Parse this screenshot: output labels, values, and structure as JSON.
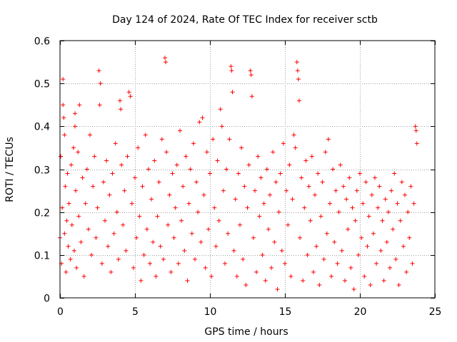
{
  "chart_data": {
    "type": "scatter",
    "title": "Day 124 of 2024, Rate Of TEC Index for receiver sctb",
    "xlabel": "GPS time / hours",
    "ylabel": "ROTI / TECUs",
    "xlim": [
      0,
      25
    ],
    "ylim": [
      0,
      0.6
    ],
    "x_ticks": [
      "0",
      "5",
      "10",
      "15",
      "20",
      "25"
    ],
    "y_ticks": [
      "0",
      "0.1",
      "0.2",
      "0.3",
      "0.4",
      "0.5",
      "0.6"
    ],
    "x_tick_values": [
      0,
      5,
      10,
      15,
      20,
      25
    ],
    "y_tick_values": [
      0,
      0.1,
      0.2,
      0.3,
      0.4,
      0.5,
      0.6
    ],
    "grid": true,
    "marker": "+",
    "color": "#ff0000",
    "series": [
      {
        "points": [
          [
            0.0,
            0.14
          ],
          [
            0.05,
            0.33
          ],
          [
            0.1,
            0.08
          ],
          [
            0.15,
            0.21
          ],
          [
            0.2,
            0.51
          ],
          [
            0.2,
            0.45
          ],
          [
            0.25,
            0.42
          ],
          [
            0.3,
            0.38
          ],
          [
            0.3,
            0.15
          ],
          [
            0.35,
            0.26
          ],
          [
            0.4,
            0.06
          ],
          [
            0.45,
            0.18
          ],
          [
            0.5,
            0.29
          ],
          [
            0.55,
            0.12
          ],
          [
            0.6,
            0.22
          ],
          [
            0.7,
            0.09
          ],
          [
            0.75,
            0.31
          ],
          [
            0.8,
            0.17
          ],
          [
            0.9,
            0.35
          ],
          [
            0.95,
            0.11
          ],
          [
            1.0,
            0.4
          ],
          [
            1.0,
            0.43
          ],
          [
            1.05,
            0.25
          ],
          [
            1.1,
            0.07
          ],
          [
            1.2,
            0.34
          ],
          [
            1.25,
            0.19
          ],
          [
            1.3,
            0.45
          ],
          [
            1.4,
            0.13
          ],
          [
            1.5,
            0.28
          ],
          [
            1.6,
            0.05
          ],
          [
            1.7,
            0.22
          ],
          [
            1.8,
            0.3
          ],
          [
            1.9,
            0.16
          ],
          [
            2.0,
            0.38
          ],
          [
            2.1,
            0.1
          ],
          [
            2.2,
            0.26
          ],
          [
            2.3,
            0.33
          ],
          [
            2.4,
            0.14
          ],
          [
            2.5,
            0.21
          ],
          [
            2.6,
            0.53
          ],
          [
            2.65,
            0.45
          ],
          [
            2.7,
            0.5
          ],
          [
            2.8,
            0.08
          ],
          [
            2.9,
            0.27
          ],
          [
            3.0,
            0.18
          ],
          [
            3.1,
            0.32
          ],
          [
            3.2,
            0.12
          ],
          [
            3.3,
            0.24
          ],
          [
            3.4,
            0.06
          ],
          [
            3.5,
            0.29
          ],
          [
            3.6,
            0.15
          ],
          [
            3.7,
            0.36
          ],
          [
            3.8,
            0.2
          ],
          [
            3.9,
            0.09
          ],
          [
            4.0,
            0.46
          ],
          [
            4.05,
            0.44
          ],
          [
            4.1,
            0.31
          ],
          [
            4.2,
            0.17
          ],
          [
            4.3,
            0.25
          ],
          [
            4.4,
            0.11
          ],
          [
            4.5,
            0.33
          ],
          [
            4.6,
            0.48
          ],
          [
            4.7,
            0.47
          ],
          [
            4.8,
            0.22
          ],
          [
            4.9,
            0.07
          ],
          [
            5.0,
            0.28
          ],
          [
            5.1,
            0.14
          ],
          [
            5.2,
            0.35
          ],
          [
            5.3,
            0.19
          ],
          [
            5.4,
            0.04
          ],
          [
            5.5,
            0.26
          ],
          [
            5.6,
            0.1
          ],
          [
            5.7,
            0.38
          ],
          [
            5.8,
            0.16
          ],
          [
            5.9,
            0.3
          ],
          [
            6.0,
            0.08
          ],
          [
            6.1,
            0.23
          ],
          [
            6.2,
            0.13
          ],
          [
            6.3,
            0.32
          ],
          [
            6.4,
            0.05
          ],
          [
            6.5,
            0.19
          ],
          [
            6.6,
            0.27
          ],
          [
            6.7,
            0.12
          ],
          [
            6.8,
            0.37
          ],
          [
            6.9,
            0.09
          ],
          [
            7.0,
            0.56
          ],
          [
            7.05,
            0.55
          ],
          [
            7.1,
            0.34
          ],
          [
            7.2,
            0.17
          ],
          [
            7.3,
            0.24
          ],
          [
            7.4,
            0.06
          ],
          [
            7.5,
            0.29
          ],
          [
            7.6,
            0.14
          ],
          [
            7.7,
            0.21
          ],
          [
            7.8,
            0.31
          ],
          [
            7.9,
            0.08
          ],
          [
            8.0,
            0.39
          ],
          [
            8.1,
            0.18
          ],
          [
            8.2,
            0.26
          ],
          [
            8.3,
            0.11
          ],
          [
            8.4,
            0.33
          ],
          [
            8.5,
            0.04
          ],
          [
            8.6,
            0.22
          ],
          [
            8.7,
            0.3
          ],
          [
            8.8,
            0.15
          ],
          [
            8.9,
            0.36
          ],
          [
            9.0,
            0.09
          ],
          [
            9.1,
            0.27
          ],
          [
            9.2,
            0.2
          ],
          [
            9.3,
            0.41
          ],
          [
            9.4,
            0.13
          ],
          [
            9.5,
            0.42
          ],
          [
            9.6,
            0.24
          ],
          [
            9.7,
            0.07
          ],
          [
            9.8,
            0.34
          ],
          [
            9.9,
            0.16
          ],
          [
            10.0,
            0.29
          ],
          [
            10.1,
            0.05
          ],
          [
            10.2,
            0.37
          ],
          [
            10.3,
            0.21
          ],
          [
            10.4,
            0.12
          ],
          [
            10.5,
            0.32
          ],
          [
            10.6,
            0.18
          ],
          [
            10.7,
            0.44
          ],
          [
            10.8,
            0.4
          ],
          [
            10.9,
            0.25
          ],
          [
            11.0,
            0.08
          ],
          [
            11.1,
            0.3
          ],
          [
            11.2,
            0.15
          ],
          [
            11.3,
            0.37
          ],
          [
            11.4,
            0.54
          ],
          [
            11.45,
            0.53
          ],
          [
            11.5,
            0.48
          ],
          [
            11.6,
            0.11
          ],
          [
            11.7,
            0.23
          ],
          [
            11.8,
            0.05
          ],
          [
            11.9,
            0.29
          ],
          [
            12.0,
            0.17
          ],
          [
            12.1,
            0.35
          ],
          [
            12.2,
            0.09
          ],
          [
            12.3,
            0.26
          ],
          [
            12.4,
            0.03
          ],
          [
            12.5,
            0.21
          ],
          [
            12.6,
            0.31
          ],
          [
            12.7,
            0.53
          ],
          [
            12.75,
            0.52
          ],
          [
            12.8,
            0.47
          ],
          [
            12.9,
            0.14
          ],
          [
            13.0,
            0.25
          ],
          [
            13.1,
            0.06
          ],
          [
            13.2,
            0.33
          ],
          [
            13.3,
            0.19
          ],
          [
            13.4,
            0.28
          ],
          [
            13.5,
            0.1
          ],
          [
            13.6,
            0.22
          ],
          [
            13.7,
            0.04
          ],
          [
            13.8,
            0.3
          ],
          [
            13.9,
            0.16
          ],
          [
            14.0,
            0.24
          ],
          [
            14.1,
            0.07
          ],
          [
            14.2,
            0.34
          ],
          [
            14.3,
            0.13
          ],
          [
            14.4,
            0.27
          ],
          [
            14.5,
            0.02
          ],
          [
            14.6,
            0.2
          ],
          [
            14.7,
            0.29
          ],
          [
            14.8,
            0.11
          ],
          [
            14.9,
            0.36
          ],
          [
            15.0,
            0.08
          ],
          [
            15.1,
            0.25
          ],
          [
            15.2,
            0.17
          ],
          [
            15.3,
            0.31
          ],
          [
            15.4,
            0.05
          ],
          [
            15.5,
            0.23
          ],
          [
            15.6,
            0.38
          ],
          [
            15.7,
            0.35
          ],
          [
            15.8,
            0.55
          ],
          [
            15.85,
            0.53
          ],
          [
            15.9,
            0.51
          ],
          [
            15.95,
            0.46
          ],
          [
            16.0,
            0.14
          ],
          [
            16.1,
            0.28
          ],
          [
            16.2,
            0.04
          ],
          [
            16.3,
            0.21
          ],
          [
            16.4,
            0.32
          ],
          [
            16.5,
            0.1
          ],
          [
            16.6,
            0.26
          ],
          [
            16.7,
            0.18
          ],
          [
            16.8,
            0.33
          ],
          [
            16.9,
            0.06
          ],
          [
            17.0,
            0.24
          ],
          [
            17.1,
            0.12
          ],
          [
            17.2,
            0.29
          ],
          [
            17.3,
            0.03
          ],
          [
            17.4,
            0.19
          ],
          [
            17.5,
            0.27
          ],
          [
            17.6,
            0.09
          ],
          [
            17.7,
            0.34
          ],
          [
            17.8,
            0.15
          ],
          [
            17.9,
            0.37
          ],
          [
            18.0,
            0.22
          ],
          [
            18.1,
            0.05
          ],
          [
            18.2,
            0.3
          ],
          [
            18.3,
            0.13
          ],
          [
            18.4,
            0.25
          ],
          [
            18.5,
            0.08
          ],
          [
            18.6,
            0.2
          ],
          [
            18.7,
            0.31
          ],
          [
            18.8,
            0.11
          ],
          [
            18.9,
            0.26
          ],
          [
            19.0,
            0.04
          ],
          [
            19.1,
            0.23
          ],
          [
            19.2,
            0.16
          ],
          [
            19.3,
            0.28
          ],
          [
            19.4,
            0.07
          ],
          [
            19.5,
            0.21
          ],
          [
            19.6,
            0.02
          ],
          [
            19.7,
            0.18
          ],
          [
            19.8,
            0.25
          ],
          [
            19.9,
            0.1
          ],
          [
            20.0,
            0.29
          ],
          [
            20.1,
            0.14
          ],
          [
            20.2,
            0.22
          ],
          [
            20.3,
            0.05
          ],
          [
            20.4,
            0.27
          ],
          [
            20.5,
            0.12
          ],
          [
            20.6,
            0.19
          ],
          [
            20.7,
            0.03
          ],
          [
            20.8,
            0.24
          ],
          [
            20.9,
            0.15
          ],
          [
            21.0,
            0.28
          ],
          [
            21.1,
            0.08
          ],
          [
            21.2,
            0.21
          ],
          [
            21.3,
            0.26
          ],
          [
            21.4,
            0.11
          ],
          [
            21.5,
            0.18
          ],
          [
            21.6,
            0.04
          ],
          [
            21.7,
            0.23
          ],
          [
            21.8,
            0.13
          ],
          [
            21.9,
            0.2
          ],
          [
            22.0,
            0.07
          ],
          [
            22.1,
            0.25
          ],
          [
            22.2,
            0.16
          ],
          [
            22.3,
            0.29
          ],
          [
            22.4,
            0.09
          ],
          [
            22.5,
            0.22
          ],
          [
            22.6,
            0.03
          ],
          [
            22.7,
            0.18
          ],
          [
            22.8,
            0.27
          ],
          [
            22.9,
            0.12
          ],
          [
            23.0,
            0.24
          ],
          [
            23.1,
            0.06
          ],
          [
            23.2,
            0.2
          ],
          [
            23.3,
            0.14
          ],
          [
            23.4,
            0.26
          ],
          [
            23.5,
            0.08
          ],
          [
            23.6,
            0.22
          ],
          [
            23.7,
            0.4
          ],
          [
            23.75,
            0.39
          ],
          [
            23.8,
            0.36
          ]
        ]
      }
    ]
  }
}
